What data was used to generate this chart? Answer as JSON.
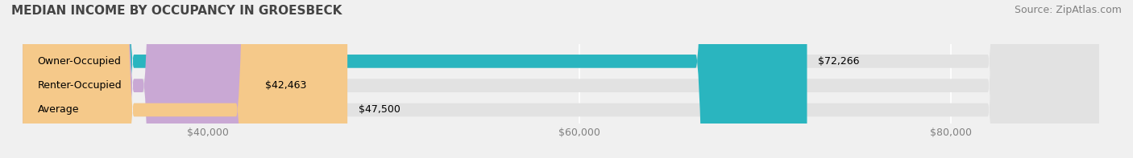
{
  "title": "MEDIAN INCOME BY OCCUPANCY IN GROESBECK",
  "source": "Source: ZipAtlas.com",
  "categories": [
    "Owner-Occupied",
    "Renter-Occupied",
    "Average"
  ],
  "values": [
    72266,
    42463,
    47500
  ],
  "bar_colors": [
    "#2ab5bf",
    "#c9a8d4",
    "#f5c98a"
  ],
  "bar_labels": [
    "$72,266",
    "$42,463",
    "$47,500"
  ],
  "xlim": [
    30000,
    88000
  ],
  "xticks": [
    40000,
    60000,
    80000
  ],
  "xtick_labels": [
    "$40,000",
    "$60,000",
    "$80,000"
  ],
  "background_color": "#f0f0f0",
  "bar_bg_color": "#e2e2e2",
  "title_fontsize": 11,
  "source_fontsize": 9,
  "label_fontsize": 9,
  "tick_fontsize": 9
}
